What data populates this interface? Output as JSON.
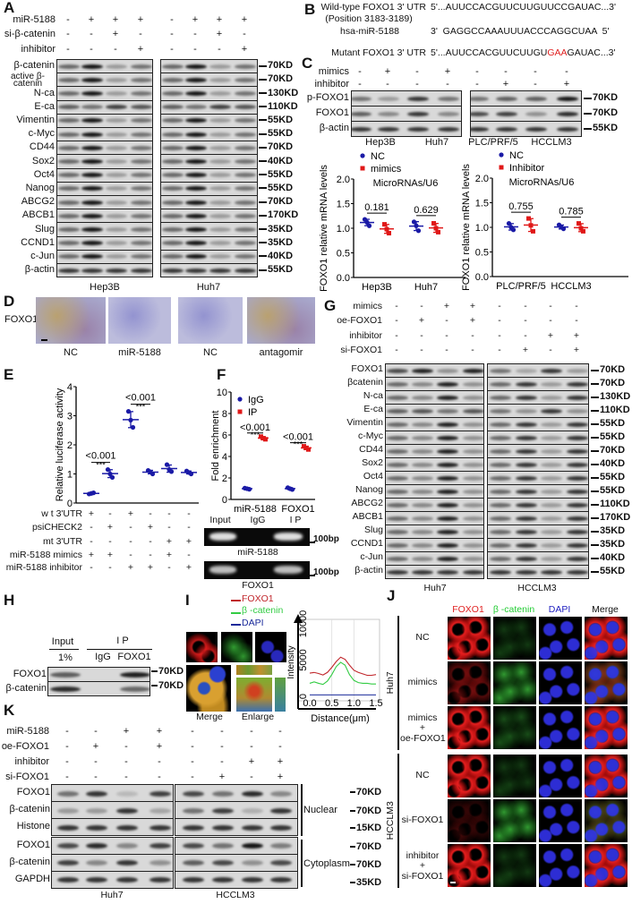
{
  "A": {
    "label": "A",
    "conditions": [
      {
        "name": "miR-5188",
        "values": [
          "-",
          "+",
          "+",
          "+",
          "-",
          "+",
          "+",
          "+"
        ]
      },
      {
        "name": "si-β-catenin",
        "values": [
          "-",
          "-",
          "+",
          "-",
          "-",
          "-",
          "+",
          "-"
        ]
      },
      {
        "name": "inhibitor",
        "values": [
          "-",
          "-",
          "-",
          "+",
          "-",
          "-",
          "-",
          "+"
        ]
      }
    ],
    "proteins": [
      "β-catenin",
      "active β-catenin",
      "N-ca",
      "E-ca",
      "Vimentin",
      "c-Myc",
      "CD44",
      "Sox2",
      "Oct4",
      "Nanog",
      "ABCG2",
      "ABCB1",
      "Slug",
      "CCND1",
      "c-Jun",
      "β-actin"
    ],
    "markers": [
      "70KD",
      "70KD",
      "130KD",
      "110KD",
      "55KD",
      "55KD",
      "70KD",
      "40KD",
      "55KD",
      "55KD",
      "70KD",
      "170KD",
      "35KD",
      "35KD",
      "40KD",
      "55KD"
    ],
    "cells": [
      "Hep3B",
      "Huh7"
    ]
  },
  "B": {
    "label": "B",
    "wt_label": "Wild-type FOXO1 3' UTR",
    "wt_position": "(Position 3183-3189)",
    "wt_seq": "5'...AUUCCACGUUCUUGUUCCGAUAC...3'",
    "mir_label": "hsa-miR-5188",
    "mir_seq": "3'  GAGGCCAAAUUUACCCAGGCUAA  5'",
    "mut_label": "Mutant FOXO1 3' UTR",
    "mut_seq_prefix": "5'...AUUCCACGUUCUUGU",
    "mut_seq_highlight": "GAA",
    "mut_seq_suffix": "GAUAC...3'",
    "mut_color": "#e02020"
  },
  "C": {
    "label": "C",
    "conditions": [
      {
        "name": "mimics",
        "values": [
          "-",
          "+",
          "-",
          "+",
          "-",
          "-",
          "-",
          "-"
        ]
      },
      {
        "name": "inhibitor",
        "values": [
          "-",
          "-",
          "-",
          "-",
          "-",
          "+",
          "-",
          "+"
        ]
      }
    ],
    "proteins": [
      "p-FOXO1",
      "FOXO1",
      "β-actin"
    ],
    "markers": [
      "70KD",
      "70KD",
      "55KD"
    ],
    "cells": [
      "Hep3B",
      "Huh7",
      "PLC/PRF/5",
      "HCCLM3"
    ]
  },
  "D": {
    "label": "D",
    "stain": "FOXO1",
    "captions": [
      "NC",
      "miR-5188",
      "NC",
      "antagomir"
    ]
  },
  "E": {
    "label": "E",
    "conditions": [
      {
        "name": "w t 3'UTR",
        "values": [
          "+",
          "-",
          "+",
          "-",
          "-",
          "-"
        ]
      },
      {
        "name": "psiCHECK2",
        "values": [
          "-",
          "+",
          "-",
          "+",
          "-",
          "-"
        ]
      },
      {
        "name": "mt 3'UTR",
        "values": [
          "-",
          "-",
          "-",
          "-",
          "+",
          "+"
        ]
      },
      {
        "name": "miR-5188 mimics",
        "values": [
          "+",
          "+",
          "-",
          "-",
          "+",
          "-"
        ]
      },
      {
        "name": "miR-5188 inhibitor",
        "values": [
          "-",
          "-",
          "+",
          "+",
          "-",
          "+"
        ]
      }
    ]
  },
  "F": {
    "label": "F",
    "gel_lanes": [
      "Input",
      "IgG",
      "I P"
    ],
    "gels": [
      "miR-5188",
      "FOXO1"
    ],
    "size": "100bp"
  },
  "G": {
    "label": "G",
    "conditions": [
      {
        "name": "mimics",
        "values": [
          "-",
          "-",
          "+",
          "+",
          "-",
          "-",
          "-",
          "-"
        ]
      },
      {
        "name": "oe-FOXO1",
        "values": [
          "-",
          "+",
          "-",
          "+",
          "-",
          "-",
          "-",
          "-"
        ]
      },
      {
        "name": "inhibitor",
        "values": [
          "-",
          "-",
          "-",
          "-",
          "-",
          "-",
          "+",
          "+"
        ]
      },
      {
        "name": "si-FOXO1",
        "values": [
          "-",
          "-",
          "-",
          "-",
          "-",
          "+",
          "-",
          "+"
        ]
      }
    ],
    "proteins": [
      "FOXO1",
      "βcatenin",
      "N-ca",
      "E-ca",
      "Vimentin",
      "c-Myc",
      "CD44",
      "Sox2",
      "Oct4",
      "Nanog",
      "ABCG2",
      "ABCB1",
      "Slug",
      "CCND1",
      "c-Jun",
      "β-actin"
    ],
    "markers": [
      "70KD",
      "70KD",
      "130KD",
      "110KD",
      "55KD",
      "55KD",
      "70KD",
      "40KD",
      "55KD",
      "55KD",
      "110KD",
      "170KD",
      "35KD",
      "35KD",
      "40KD",
      "55KD"
    ],
    "cells": [
      "Huh7",
      "HCCLM3"
    ]
  },
  "H": {
    "label": "H",
    "input": "Input",
    "input_amount": "1%",
    "ip": "I P",
    "lanes": [
      "IgG",
      "FOXO1"
    ],
    "proteins": [
      "FOXO1",
      "β-catenin"
    ],
    "markers": [
      "70KD",
      "70KD"
    ]
  },
  "I": {
    "label": "I",
    "legend": [
      {
        "name": "FOXO1",
        "color": "#c0262b"
      },
      {
        "name": "β -catenin",
        "color": "#33cc44"
      },
      {
        "name": "DAPI",
        "color": "#1a2a9a"
      }
    ],
    "captions": [
      "Merge",
      "Enlarge"
    ]
  },
  "J": {
    "label": "J",
    "columns": [
      "FOXO1",
      "β -catenin",
      "DAPI",
      "Merge"
    ],
    "column_colors": [
      "#e02020",
      "#22cc33",
      "#2020c0",
      "#111111"
    ],
    "groups": [
      {
        "name": "Huh7",
        "rows": [
          "NC",
          "mimics",
          "mimics\n+\noe-FOXO1"
        ]
      },
      {
        "name": "HCCLM3",
        "rows": [
          "NC",
          "si-FOXO1",
          "inhibitor\n+\nsi-FOXO1"
        ]
      }
    ]
  },
  "K": {
    "label": "K",
    "conditions": [
      {
        "name": "miR-5188",
        "values": [
          "-",
          "-",
          "+",
          "+",
          "-",
          "-",
          "-",
          "-"
        ]
      },
      {
        "name": "oe-FOXO1",
        "values": [
          "-",
          "+",
          "-",
          "+",
          "-",
          "-",
          "-",
          "-"
        ]
      },
      {
        "name": "inhibitor",
        "values": [
          "-",
          "-",
          "-",
          "-",
          "-",
          "-",
          "+",
          "+"
        ]
      },
      {
        "name": "si-FOXO1",
        "values": [
          "-",
          "-",
          "-",
          "-",
          "-",
          "+",
          "-",
          "+"
        ]
      }
    ],
    "proteins": [
      "FOXO1",
      "β-catenin",
      "Histone",
      "FOXO1",
      "β-catenin",
      "GAPDH"
    ],
    "markers": [
      "70KD",
      "70KD",
      "15KD",
      "70KD",
      "70KD",
      "35KD"
    ],
    "fractions": [
      "Nuclear",
      "Cytoplasm"
    ],
    "cells": [
      "Huh7",
      "HCCLM3"
    ]
  },
  "chart_data": [
    {
      "type": "scatter",
      "ylabel": "FOXO1 relative mRNA levels",
      "annotation": "MicroRNAs/U6",
      "categories": [
        "Hep3B",
        "Huh7"
      ],
      "ylim": [
        0,
        2.0
      ],
      "yticks": [
        "0.0",
        "0.5",
        "1.0",
        "1.5",
        "2.0"
      ],
      "series": [
        {
          "name": "NC",
          "color": "#1a1aa6",
          "marker": "circle",
          "values": [
            [
              1.18,
              1.12,
              1.05
            ],
            [
              1.13,
              1.05,
              0.95
            ]
          ]
        },
        {
          "name": "mimics",
          "color": "#e01818",
          "marker": "square",
          "values": [
            [
              1.08,
              0.98,
              0.9
            ],
            [
              1.1,
              1.0,
              0.92
            ]
          ]
        }
      ],
      "pvalues": [
        "0.181",
        "0.629"
      ],
      "legend": "top-left"
    },
    {
      "type": "scatter",
      "ylabel": "FOXO1 relative mRNA levels",
      "annotation": "MicroRNAs/U6",
      "categories": [
        "PLC/PRF/5",
        "HCCLM3"
      ],
      "ylim": [
        0,
        2.0
      ],
      "yticks": [
        "0.0",
        "0.5",
        "1.0",
        "1.5",
        "2.0"
      ],
      "series": [
        {
          "name": "NC",
          "color": "#1a1aa6",
          "marker": "circle",
          "values": [
            [
              1.08,
              1.0,
              0.95
            ],
            [
              1.05,
              1.0,
              0.97
            ]
          ]
        },
        {
          "name": "Inhibitor",
          "color": "#e01818",
          "marker": "square",
          "values": [
            [
              1.18,
              1.04,
              0.92
            ],
            [
              1.08,
              0.98,
              0.92
            ]
          ]
        }
      ],
      "pvalues": [
        "0.755",
        "0.785"
      ],
      "legend": "top-left"
    },
    {
      "type": "scatter",
      "ylabel": "Relative luciferase activity",
      "ylim": [
        0,
        4
      ],
      "yticks": [
        "0",
        "1",
        "2",
        "3",
        "4"
      ],
      "series": [
        {
          "color": "#1a1aa6",
          "marker": "circle",
          "values": [
            [
              0.31,
              0.33,
              0.35
            ],
            [
              1.15,
              1.0,
              0.88
            ],
            [
              3.15,
              2.85,
              2.6
            ],
            [
              1.12,
              1.07,
              1.0
            ],
            [
              1.32,
              1.15,
              1.08
            ],
            [
              1.1,
              1.05,
              1.0
            ]
          ]
        }
      ],
      "comparisons": [
        {
          "groups": [
            0,
            1
          ],
          "p": "<0.001",
          "stars": "***"
        },
        {
          "groups": [
            2,
            3
          ],
          "p": "<0.001",
          "stars": "***"
        }
      ]
    },
    {
      "type": "scatter",
      "ylabel": "Fold enrichment",
      "categories": [
        "miR-5188",
        "FOXO1"
      ],
      "ylim": [
        0,
        10
      ],
      "yticks": [
        "0",
        "2",
        "4",
        "6",
        "8",
        "10"
      ],
      "series": [
        {
          "name": "IgG",
          "color": "#1a1aa6",
          "marker": "circle",
          "values": [
            [
              1.05,
              1.0,
              0.95
            ],
            [
              1.1,
              1.0,
              0.92
            ]
          ]
        },
        {
          "name": "IP",
          "color": "#e01818",
          "marker": "square",
          "values": [
            [
              5.85,
              5.7,
              5.6
            ],
            [
              4.95,
              4.8,
              4.65
            ]
          ]
        }
      ],
      "pvalues": [
        "<0.001",
        "<0.001"
      ],
      "stars": [
        "***",
        "***"
      ],
      "legend": "top-left"
    },
    {
      "type": "line",
      "xlabel": "Distance(μm)",
      "ylabel": "Intensity",
      "xlim": [
        0,
        1.5
      ],
      "ylim": [
        0,
        10000
      ],
      "xticks": [
        "0.0",
        "0.5",
        "1.0",
        "1.5"
      ],
      "yticks": [
        "0",
        "5000",
        "10000"
      ],
      "grid": true,
      "x": [
        0,
        0.1,
        0.2,
        0.3,
        0.4,
        0.5,
        0.6,
        0.7,
        0.8,
        0.9,
        1.0,
        1.1,
        1.2,
        1.3,
        1.4,
        1.5
      ],
      "series": [
        {
          "name": "FOXO1",
          "color": "#c0262b",
          "values": [
            3200,
            3300,
            3150,
            2950,
            3300,
            4000,
            4800,
            5400,
            5100,
            4300,
            3600,
            3300,
            3100,
            2900,
            2900,
            3000
          ]
        },
        {
          "name": "β -catenin",
          "color": "#33cc44",
          "values": [
            1800,
            2000,
            1800,
            1650,
            2100,
            3000,
            4100,
            4700,
            4300,
            3000,
            2200,
            1900,
            1800,
            1800,
            1700,
            1700
          ]
        },
        {
          "name": "DAPI",
          "color": "#1a2a9a",
          "values": [
            200,
            200,
            200,
            200,
            200,
            200,
            200,
            200,
            200,
            200,
            200,
            200,
            200,
            200,
            200,
            200
          ]
        }
      ],
      "legend": "top-left"
    }
  ]
}
